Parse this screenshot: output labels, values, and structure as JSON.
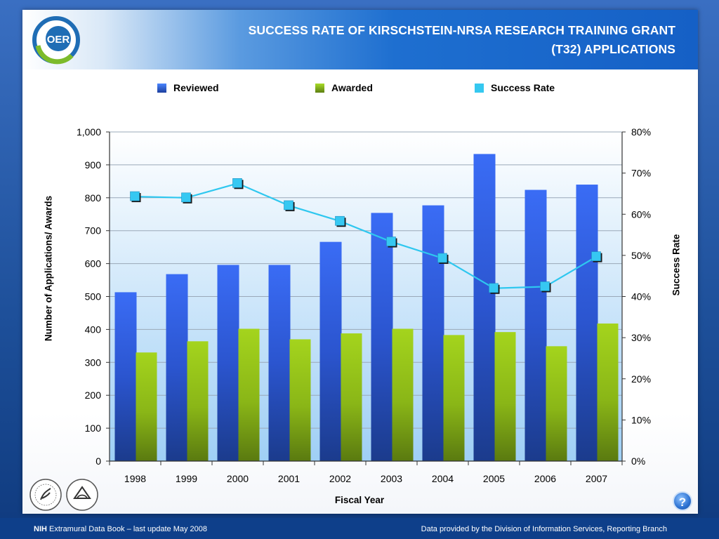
{
  "header": {
    "title": "SUCCESS RATE OF  KIRSCHSTEIN-NRSA  RESEARCH TRAINING GRANT\n(T32) APPLICATIONS",
    "logo_text": "OER"
  },
  "legend": {
    "reviewed": "Reviewed",
    "awarded": "Awarded",
    "success_rate": "Success Rate"
  },
  "axes": {
    "ylabel_left": "Number of Applications/ Awards",
    "ylabel_right": "Success Rate",
    "xlabel": "Fiscal Year"
  },
  "chart_data": {
    "type": "bar",
    "title": "SUCCESS RATE OF  KIRSCHSTEIN-NRSA  RESEARCH TRAINING GRANT (T32) APPLICATIONS",
    "xlabel": "Fiscal Year",
    "ylabel": "Number of Applications/ Awards",
    "y2label": "Success Rate",
    "categories": [
      "1998",
      "1999",
      "2000",
      "2001",
      "2002",
      "2003",
      "2004",
      "2005",
      "2006",
      "2007"
    ],
    "series": [
      {
        "name": "Reviewed",
        "type": "bar",
        "axis": "left",
        "values": [
          513,
          568,
          596,
          596,
          666,
          754,
          777,
          933,
          824,
          840
        ]
      },
      {
        "name": "Awarded",
        "type": "bar",
        "axis": "left",
        "values": [
          330,
          364,
          402,
          370,
          388,
          402,
          383,
          392,
          349,
          418
        ]
      },
      {
        "name": "Success Rate",
        "type": "line",
        "axis": "right",
        "values": [
          64.3,
          64.0,
          67.5,
          62.1,
          58.3,
          53.3,
          49.3,
          42.0,
          42.4,
          49.7
        ]
      }
    ],
    "ylim": [
      0,
      1000
    ],
    "y2lim": [
      0,
      80
    ],
    "yticks": [
      "0",
      "100",
      "200",
      "300",
      "400",
      "500",
      "600",
      "700",
      "800",
      "900",
      "1,000"
    ],
    "y2ticks": [
      "0%",
      "10%",
      "20%",
      "30%",
      "40%",
      "50%",
      "60%",
      "70%",
      "80%"
    ],
    "grid": true,
    "legend_position": "top",
    "colors": {
      "reviewed": "#2f63e8",
      "awarded": "#8fc61a",
      "success_rate": "#2ec7ef"
    }
  },
  "footer": {
    "left_bold": "NIH",
    "left": " Extramural Data Book – last update May 2008",
    "right": "Data provided by the Division of Information Services, Reporting Branch"
  },
  "help_label": "?"
}
